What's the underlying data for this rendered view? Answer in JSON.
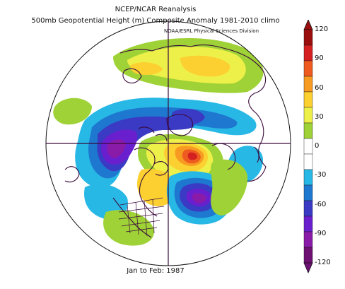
{
  "header": {
    "title_line1": "NCEP/NCAR Reanalysis",
    "title_line2": "500mb Geopotential Height (m) Composite Anomaly 1981-2010 climo",
    "subtitle": "NOAA/ESRL Physical Sciences Division"
  },
  "footer": {
    "period": "Jan to Feb: 1987"
  },
  "legend": {
    "ticks": [
      "120",
      "90",
      "60",
      "30",
      "0",
      "-30",
      "-60",
      "-90",
      "-120"
    ],
    "colors": [
      "#9a0e0e",
      "#d42020",
      "#ee5a1f",
      "#f79a22",
      "#fcd031",
      "#eef04a",
      "#9ed236",
      "#ffffff",
      "#ffffff",
      "#28b8e6",
      "#1f78cf",
      "#3a3ac4",
      "#6a1fcf",
      "#8a1aa8",
      "#6e0f73"
    ]
  },
  "map": {
    "projection": "north-polar-stereographic",
    "anomaly_colors": {
      "neg_light": "#28b8e6",
      "neg_mid": "#1f78cf",
      "neg_deep": "#3a3ac4",
      "neg_violet": "#6a1fcf",
      "neg_purple": "#8a1aa8",
      "pos_green": "#9ed236",
      "pos_lime": "#eef04a",
      "pos_yellow": "#fcd031",
      "pos_orange": "#f79a22",
      "pos_red": "#ee5a1f",
      "pos_deep_red": "#d42020"
    },
    "coastline_color": "#3a0a3a"
  }
}
